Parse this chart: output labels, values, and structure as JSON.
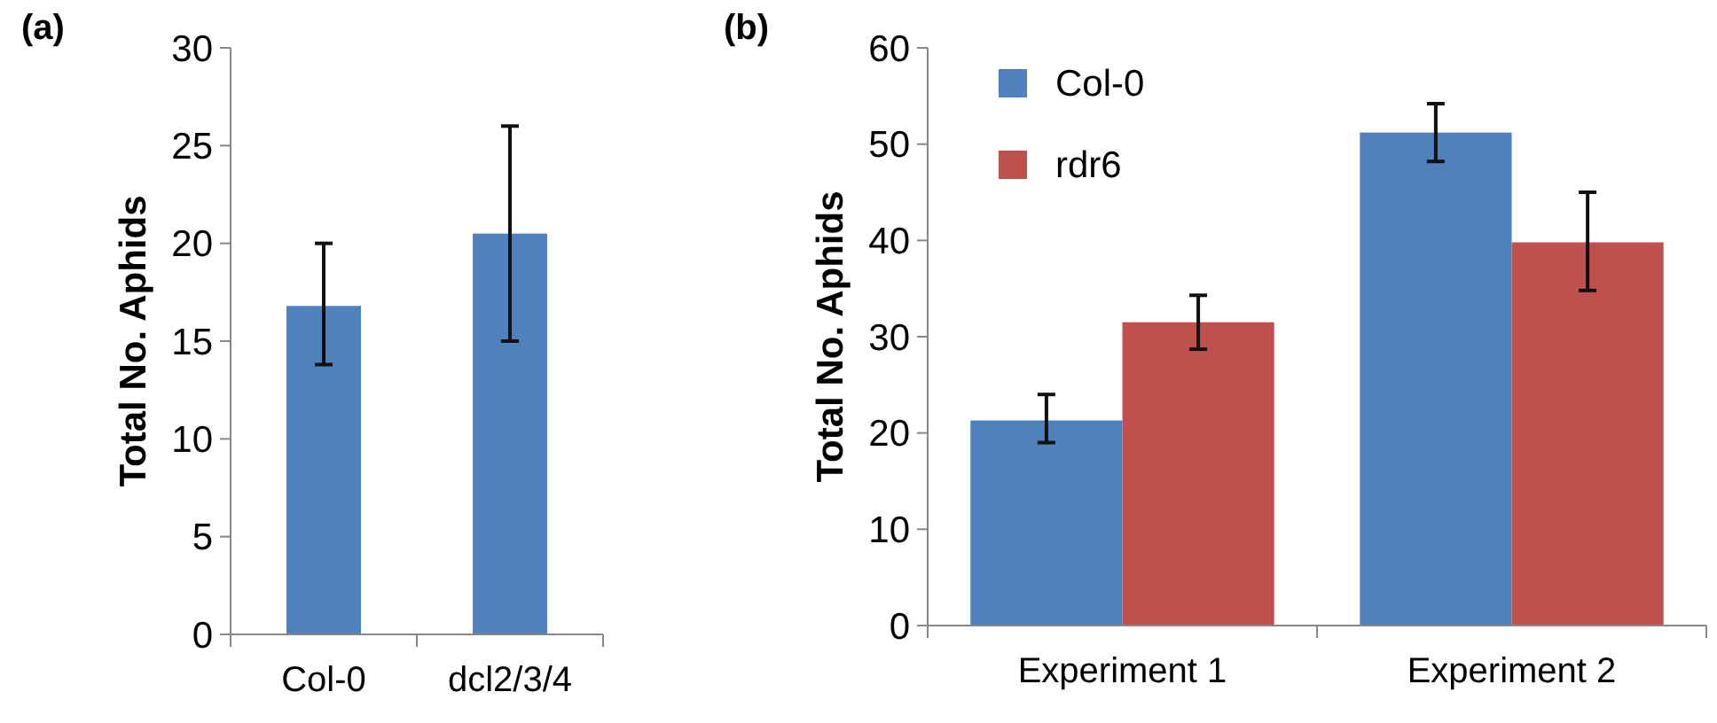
{
  "chart_data": [
    {
      "type": "bar",
      "title": "(a)",
      "ylabel": "Total No. Aphids",
      "categories": [
        "Col-0",
        "dcl2/3/4"
      ],
      "values": [
        16.8,
        20.5
      ],
      "errors": [
        [
          13.8,
          20
        ],
        [
          15,
          26
        ]
      ],
      "color": "#4f81bd",
      "ylim": [
        0,
        30
      ],
      "yticks": [
        0,
        5,
        10,
        15,
        20,
        25,
        30
      ],
      "grid": false,
      "legend": false
    },
    {
      "type": "bar",
      "title": "(b)",
      "ylabel": "Total No. Aphids",
      "categories": [
        "Experiment 1",
        "Experiment 2"
      ],
      "series": [
        {
          "name": "Col-0",
          "color": "#4f81bd",
          "values": [
            21.3,
            51.2
          ],
          "errors": [
            [
              19,
              24
            ],
            [
              48.2,
              54.2
            ]
          ]
        },
        {
          "name": "rdr6",
          "color": "#c0504d",
          "values": [
            31.5,
            39.8
          ],
          "errors": [
            [
              28.7,
              34.3
            ],
            [
              34.8,
              45
            ]
          ]
        }
      ],
      "ylim": [
        0,
        60
      ],
      "yticks": [
        0,
        10,
        20,
        30,
        40,
        50,
        60
      ],
      "grid": false,
      "legend": "top left"
    }
  ]
}
